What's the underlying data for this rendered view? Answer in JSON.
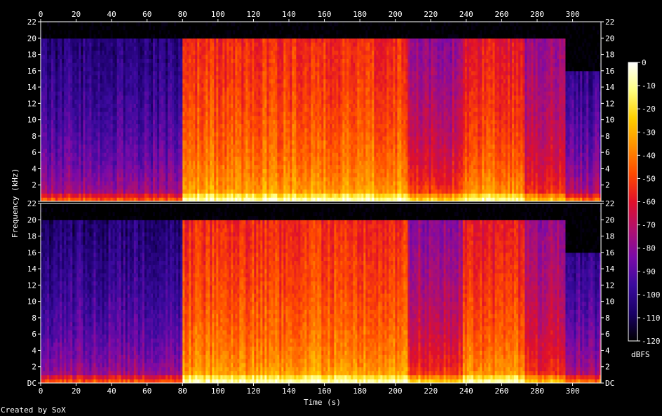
{
  "chart_data": {
    "type": "heatmap",
    "subtype": "spectrogram",
    "channels": 2,
    "xlabel": "Time (s)",
    "ylabel": "Frequency (kHz)",
    "x_ticks": [
      0,
      20,
      40,
      60,
      80,
      100,
      120,
      140,
      160,
      180,
      200,
      220,
      240,
      260,
      280,
      300
    ],
    "xlim": [
      0,
      316
    ],
    "y_ticks": [
      "DC",
      2,
      4,
      6,
      8,
      10,
      12,
      14,
      16,
      18,
      20,
      22
    ],
    "ylim_khz": [
      0,
      22
    ],
    "colorbar": {
      "label": "dBFS",
      "ticks": [
        0,
        -10,
        -20,
        -30,
        -40,
        -50,
        -60,
        -70,
        -80,
        -90,
        -100,
        -110,
        -120
      ],
      "range": [
        -120,
        0
      ],
      "colormap": [
        "#000000",
        "#1a0066",
        "#3a0a9e",
        "#7a0aa8",
        "#b0106e",
        "#e0102a",
        "#ff4a00",
        "#ff9000",
        "#ffd000",
        "#ffff80",
        "#ffffff"
      ]
    },
    "segments": [
      {
        "t": [
          0,
          80
        ],
        "level": "quiet",
        "band_cutoff_khz": 20,
        "mid_db": -105,
        "low_db": -60
      },
      {
        "t": [
          80,
          207
        ],
        "level": "loud",
        "band_cutoff_khz": 20,
        "mid_db": -55,
        "low_db": -20
      },
      {
        "t": [
          207,
          238
        ],
        "level": "bridge",
        "band_cutoff_khz": 20,
        "mid_db": -80,
        "low_db": -35
      },
      {
        "t": [
          238,
          273
        ],
        "level": "loud",
        "band_cutoff_khz": 20,
        "mid_db": -60,
        "low_db": -22
      },
      {
        "t": [
          273,
          296
        ],
        "level": "fade",
        "band_cutoff_khz": 20,
        "mid_db": -78,
        "low_db": -40
      },
      {
        "t": [
          296,
          316
        ],
        "level": "outro",
        "band_cutoff_khz": 16,
        "mid_db": -100,
        "low_db": -55
      }
    ]
  },
  "footer": {
    "credit": "Created by SoX"
  },
  "colors": {
    "background": "#000000",
    "text": "#ffffff",
    "axis": "#ffffff"
  }
}
